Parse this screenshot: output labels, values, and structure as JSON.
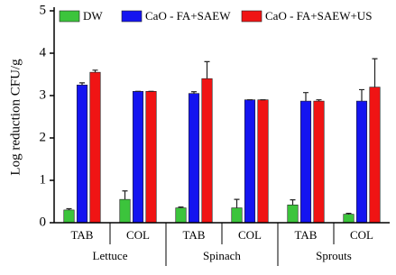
{
  "chart_data": {
    "type": "bar",
    "y_label": "Log reduction CFU/g",
    "categories": [
      "TAB",
      "COL",
      "TAB",
      "COL",
      "TAB",
      "COL"
    ],
    "group_labels": [
      "Lettuce",
      "Spinach",
      "Sprouts"
    ],
    "series": [
      {
        "name": "DW",
        "color": "#3cc43c",
        "values": [
          0.3,
          0.55,
          0.35,
          0.35,
          0.42,
          0.2
        ],
        "errors": [
          0.03,
          0.2,
          0.02,
          0.2,
          0.12,
          0.02
        ]
      },
      {
        "name": "CaO - FA+SAEW",
        "color": "#1414f0",
        "values": [
          3.25,
          3.1,
          3.05,
          2.9,
          2.87,
          2.87
        ],
        "errors": [
          0.05,
          0,
          0.04,
          0,
          0.2,
          0.27
        ]
      },
      {
        "name": "CaO - FA+SAEW+US",
        "color": "#f01414",
        "values": [
          3.55,
          3.1,
          3.4,
          2.9,
          2.87,
          3.2
        ],
        "errors": [
          0.05,
          0,
          0.4,
          0,
          0.03,
          0.67
        ]
      }
    ],
    "ylim": [
      0,
      5
    ],
    "yticks": [
      0,
      1,
      2,
      3,
      4,
      5
    ],
    "legend": "top-left"
  }
}
